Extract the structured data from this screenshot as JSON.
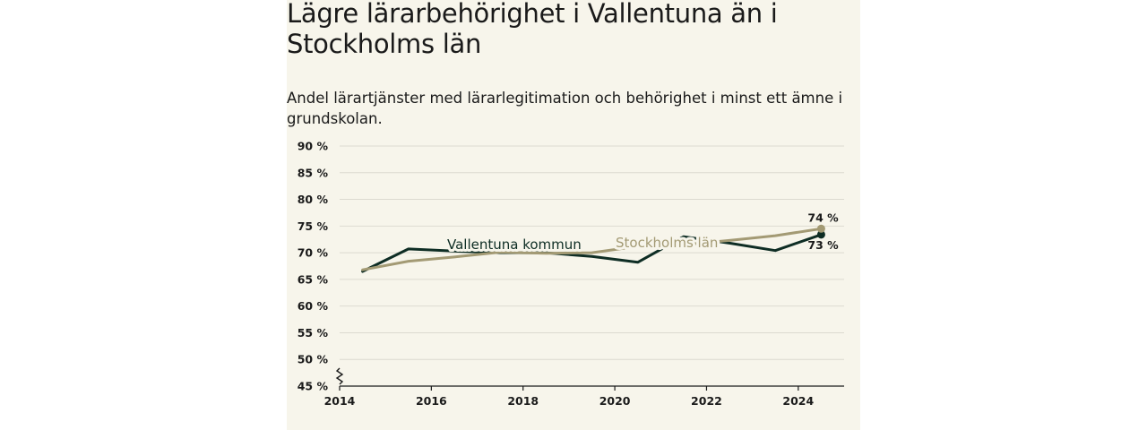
{
  "colors": {
    "background": "#f7f5eb",
    "vallentuna": "#0e2d24",
    "stockholm": "#a39a74",
    "grid": "#dcdad0",
    "axis": "#1a1a1a"
  },
  "title": "Lägre lärarbehörighet i Vallentuna än i Stockholms län",
  "subtitle": "Andel lärartjänster med lärarlegitimation och behörighet i minst ett ämne i grundskolan.",
  "chart_data": {
    "type": "line",
    "title": "Lägre lärarbehörighet i Vallentuna än i Stockholms län",
    "subtitle": "Andel lärartjänster med lärarlegitimation och behörighet i minst ett ämne i grundskolan.",
    "xlabel": "",
    "ylabel": "",
    "xlim": [
      2014,
      2025
    ],
    "ylim": [
      45,
      90
    ],
    "x_ticks": [
      2014,
      2016,
      2018,
      2020,
      2022,
      2024
    ],
    "y_ticks": [
      45,
      50,
      55,
      60,
      65,
      70,
      75,
      80,
      85,
      90
    ],
    "y_tick_labels": [
      "45 %",
      "50 %",
      "55 %",
      "60 %",
      "65 %",
      "70 %",
      "75 %",
      "80 %",
      "85 %",
      "90 %"
    ],
    "x_tick_labels": [
      "2014",
      "2016",
      "2018",
      "2020",
      "2022",
      "2024"
    ],
    "grid": true,
    "axis_break": true,
    "series": [
      {
        "name": "Vallentuna kommun",
        "color": "#0e2d24",
        "x": [
          2014.5,
          2015.5,
          2016.5,
          2017.5,
          2018.5,
          2019.5,
          2020.5,
          2021.5,
          2022.5,
          2023.5,
          2024.5
        ],
        "values": [
          66.5,
          70.7,
          70.3,
          70.0,
          70.0,
          69.3,
          68.2,
          73.0,
          71.8,
          70.4,
          73.4
        ],
        "end_label": "73 %"
      },
      {
        "name": "Stockholms län",
        "color": "#a39a74",
        "x": [
          2014.5,
          2015.5,
          2016.5,
          2017.5,
          2018.5,
          2019.5,
          2020.5,
          2021.5,
          2022.5,
          2023.5,
          2024.5
        ],
        "values": [
          66.8,
          68.4,
          69.2,
          70.1,
          69.9,
          70.0,
          71.2,
          71.5,
          72.3,
          73.2,
          74.5
        ],
        "end_label": "74 %"
      }
    ]
  }
}
